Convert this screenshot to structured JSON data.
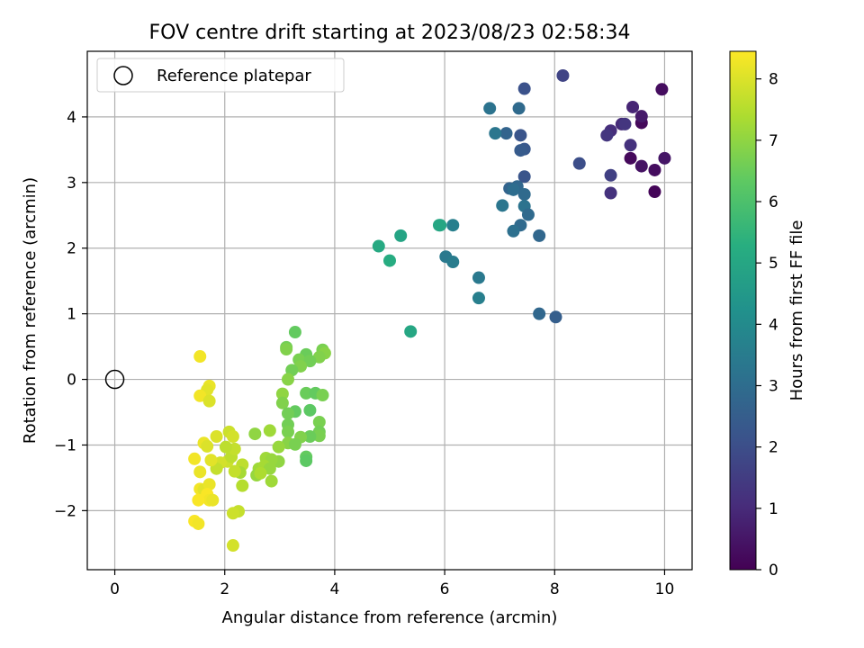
{
  "chart_data": {
    "type": "scatter",
    "title": "FOV centre drift starting at 2023/08/23 02:58:34",
    "xlabel": "Angular distance from reference (arcmin)",
    "ylabel": "Rotation from reference (arcmin)",
    "xlim": [
      -0.5,
      10.5
    ],
    "ylim": [
      -2.9,
      5.0
    ],
    "xticks": [
      0,
      2,
      4,
      6,
      8,
      10
    ],
    "yticks": [
      -2,
      -1,
      0,
      1,
      2,
      3,
      4
    ],
    "grid": true,
    "legend": {
      "placement": "top-left",
      "entries": [
        "Reference platepar"
      ]
    },
    "reference": {
      "x": 0,
      "y": 0,
      "label": "Reference platepar"
    },
    "colorbar": {
      "label": "Hours from first FF file",
      "colormap": "viridis",
      "range": [
        0,
        8.45
      ],
      "ticks": [
        0,
        1,
        2,
        3,
        4,
        5,
        6,
        7,
        8
      ]
    },
    "points": [
      {
        "x": 9.95,
        "y": 4.42,
        "t": 0.3
      },
      {
        "x": 10.0,
        "y": 3.37,
        "t": 0.5
      },
      {
        "x": 9.82,
        "y": 3.19,
        "t": 0.3
      },
      {
        "x": 9.82,
        "y": 2.86,
        "t": 0.1
      },
      {
        "x": 9.58,
        "y": 3.91,
        "t": 0.2
      },
      {
        "x": 9.58,
        "y": 4.01,
        "t": 0.6
      },
      {
        "x": 9.58,
        "y": 3.25,
        "t": 0.4
      },
      {
        "x": 9.42,
        "y": 4.15,
        "t": 0.9
      },
      {
        "x": 9.38,
        "y": 3.37,
        "t": 0.2
      },
      {
        "x": 9.38,
        "y": 3.57,
        "t": 1.2
      },
      {
        "x": 9.22,
        "y": 3.89,
        "t": 1.0
      },
      {
        "x": 9.28,
        "y": 3.89,
        "t": 1.3
      },
      {
        "x": 9.02,
        "y": 3.79,
        "t": 1.1
      },
      {
        "x": 8.95,
        "y": 3.72,
        "t": 1.3
      },
      {
        "x": 9.02,
        "y": 3.11,
        "t": 1.6
      },
      {
        "x": 9.02,
        "y": 2.84,
        "t": 1.2
      },
      {
        "x": 8.45,
        "y": 3.29,
        "t": 2.0
      },
      {
        "x": 8.15,
        "y": 4.63,
        "t": 1.7
      },
      {
        "x": 7.45,
        "y": 4.43,
        "t": 2.1
      },
      {
        "x": 7.38,
        "y": 3.72,
        "t": 2.2
      },
      {
        "x": 7.45,
        "y": 3.51,
        "t": 2.3
      },
      {
        "x": 7.38,
        "y": 3.49,
        "t": 2.4
      },
      {
        "x": 7.45,
        "y": 3.09,
        "t": 2.2
      },
      {
        "x": 7.35,
        "y": 4.13,
        "t": 2.9
      },
      {
        "x": 7.12,
        "y": 3.75,
        "t": 2.7
      },
      {
        "x": 6.82,
        "y": 4.13,
        "t": 3.2
      },
      {
        "x": 6.92,
        "y": 3.75,
        "t": 3.3
      },
      {
        "x": 7.18,
        "y": 2.91,
        "t": 2.7
      },
      {
        "x": 7.32,
        "y": 2.94,
        "t": 2.8
      },
      {
        "x": 7.25,
        "y": 2.89,
        "t": 3.0
      },
      {
        "x": 7.45,
        "y": 2.82,
        "t": 2.9
      },
      {
        "x": 7.45,
        "y": 2.64,
        "t": 3.2
      },
      {
        "x": 7.52,
        "y": 2.51,
        "t": 2.9
      },
      {
        "x": 7.05,
        "y": 2.65,
        "t": 3.3
      },
      {
        "x": 7.38,
        "y": 2.35,
        "t": 2.9
      },
      {
        "x": 7.25,
        "y": 2.26,
        "t": 3.1
      },
      {
        "x": 7.72,
        "y": 2.19,
        "t": 2.8
      },
      {
        "x": 6.62,
        "y": 1.55,
        "t": 3.4
      },
      {
        "x": 6.62,
        "y": 1.24,
        "t": 3.6
      },
      {
        "x": 7.72,
        "y": 1.0,
        "t": 2.8
      },
      {
        "x": 8.02,
        "y": 0.95,
        "t": 2.5
      },
      {
        "x": 6.15,
        "y": 2.35,
        "t": 3.6
      },
      {
        "x": 5.92,
        "y": 2.35,
        "t": 4.9
      },
      {
        "x": 5.9,
        "y": 2.35,
        "t": 5.0
      },
      {
        "x": 6.02,
        "y": 1.87,
        "t": 3.4
      },
      {
        "x": 6.15,
        "y": 1.79,
        "t": 3.5
      },
      {
        "x": 5.2,
        "y": 2.19,
        "t": 4.9
      },
      {
        "x": 4.8,
        "y": 2.03,
        "t": 5.1
      },
      {
        "x": 5.0,
        "y": 1.81,
        "t": 5.2
      },
      {
        "x": 5.38,
        "y": 0.73,
        "t": 5.0
      },
      {
        "x": 3.28,
        "y": 0.72,
        "t": 6.4
      },
      {
        "x": 3.12,
        "y": 0.49,
        "t": 6.6
      },
      {
        "x": 3.12,
        "y": 0.46,
        "t": 6.8
      },
      {
        "x": 3.78,
        "y": 0.45,
        "t": 6.7
      },
      {
        "x": 3.82,
        "y": 0.4,
        "t": 6.9
      },
      {
        "x": 3.48,
        "y": 0.38,
        "t": 6.5
      },
      {
        "x": 3.72,
        "y": 0.34,
        "t": 6.8
      },
      {
        "x": 3.35,
        "y": 0.3,
        "t": 6.7
      },
      {
        "x": 3.55,
        "y": 0.28,
        "t": 6.6
      },
      {
        "x": 3.38,
        "y": 0.2,
        "t": 6.8
      },
      {
        "x": 3.22,
        "y": 0.14,
        "t": 6.6
      },
      {
        "x": 3.15,
        "y": 0.0,
        "t": 6.9
      },
      {
        "x": 3.05,
        "y": -0.22,
        "t": 7.0
      },
      {
        "x": 3.48,
        "y": -0.21,
        "t": 6.5
      },
      {
        "x": 3.65,
        "y": -0.21,
        "t": 6.4
      },
      {
        "x": 3.78,
        "y": -0.24,
        "t": 6.7
      },
      {
        "x": 3.05,
        "y": -0.36,
        "t": 6.8
      },
      {
        "x": 3.28,
        "y": -0.49,
        "t": 6.4
      },
      {
        "x": 3.15,
        "y": -0.52,
        "t": 6.6
      },
      {
        "x": 3.55,
        "y": -0.47,
        "t": 6.3
      },
      {
        "x": 3.15,
        "y": -0.69,
        "t": 6.6
      },
      {
        "x": 3.72,
        "y": -0.65,
        "t": 6.7
      },
      {
        "x": 3.15,
        "y": -0.8,
        "t": 6.7
      },
      {
        "x": 3.72,
        "y": -0.8,
        "t": 6.6
      },
      {
        "x": 3.72,
        "y": -0.86,
        "t": 6.7
      },
      {
        "x": 3.55,
        "y": -0.87,
        "t": 6.5
      },
      {
        "x": 3.38,
        "y": -0.88,
        "t": 6.8
      },
      {
        "x": 3.15,
        "y": -0.97,
        "t": 6.9
      },
      {
        "x": 3.28,
        "y": -0.99,
        "t": 6.7
      },
      {
        "x": 2.98,
        "y": -1.03,
        "t": 7.1
      },
      {
        "x": 2.82,
        "y": -0.78,
        "t": 7.2
      },
      {
        "x": 2.55,
        "y": -0.83,
        "t": 7.0
      },
      {
        "x": 3.48,
        "y": -1.18,
        "t": 6.4
      },
      {
        "x": 3.48,
        "y": -1.24,
        "t": 6.3
      },
      {
        "x": 2.98,
        "y": -1.25,
        "t": 7.0
      },
      {
        "x": 2.75,
        "y": -1.2,
        "t": 7.2
      },
      {
        "x": 2.85,
        "y": -1.22,
        "t": 7.1
      },
      {
        "x": 2.62,
        "y": -1.36,
        "t": 7.2
      },
      {
        "x": 2.72,
        "y": -1.32,
        "t": 7.3
      },
      {
        "x": 2.82,
        "y": -1.36,
        "t": 7.1
      },
      {
        "x": 2.58,
        "y": -1.46,
        "t": 7.1
      },
      {
        "x": 2.65,
        "y": -1.43,
        "t": 7.4
      },
      {
        "x": 2.85,
        "y": -1.55,
        "t": 7.2
      },
      {
        "x": 2.32,
        "y": -1.62,
        "t": 7.5
      },
      {
        "x": 2.32,
        "y": -1.3,
        "t": 7.6
      },
      {
        "x": 2.28,
        "y": -1.42,
        "t": 7.3
      },
      {
        "x": 2.18,
        "y": -1.4,
        "t": 7.7
      },
      {
        "x": 2.05,
        "y": -1.25,
        "t": 7.8
      },
      {
        "x": 2.12,
        "y": -1.18,
        "t": 7.6
      },
      {
        "x": 2.18,
        "y": -1.06,
        "t": 7.7
      },
      {
        "x": 2.02,
        "y": -1.03,
        "t": 7.6
      },
      {
        "x": 2.08,
        "y": -0.8,
        "t": 7.8
      },
      {
        "x": 2.15,
        "y": -0.87,
        "t": 7.9
      },
      {
        "x": 1.85,
        "y": -0.87,
        "t": 8.0
      },
      {
        "x": 1.92,
        "y": -1.27,
        "t": 7.9
      },
      {
        "x": 1.85,
        "y": -1.36,
        "t": 7.7
      },
      {
        "x": 1.75,
        "y": -1.23,
        "t": 8.1
      },
      {
        "x": 1.62,
        "y": -0.97,
        "t": 8.2
      },
      {
        "x": 1.68,
        "y": -1.02,
        "t": 8.0
      },
      {
        "x": 1.55,
        "y": -1.41,
        "t": 8.2
      },
      {
        "x": 1.45,
        "y": -1.21,
        "t": 8.3
      },
      {
        "x": 1.55,
        "y": -1.67,
        "t": 8.3
      },
      {
        "x": 1.62,
        "y": -1.68,
        "t": 8.1
      },
      {
        "x": 1.72,
        "y": -1.6,
        "t": 8.2
      },
      {
        "x": 1.68,
        "y": -1.75,
        "t": 8.4
      },
      {
        "x": 1.72,
        "y": -1.84,
        "t": 8.3
      },
      {
        "x": 1.52,
        "y": -1.84,
        "t": 8.4
      },
      {
        "x": 1.78,
        "y": -1.84,
        "t": 8.2
      },
      {
        "x": 2.25,
        "y": -2.01,
        "t": 7.7
      },
      {
        "x": 2.15,
        "y": -2.04,
        "t": 7.8
      },
      {
        "x": 1.45,
        "y": -2.16,
        "t": 8.4
      },
      {
        "x": 1.52,
        "y": -2.2,
        "t": 8.3
      },
      {
        "x": 2.15,
        "y": -2.53,
        "t": 7.9
      },
      {
        "x": 1.55,
        "y": 0.35,
        "t": 8.3
      },
      {
        "x": 1.72,
        "y": -0.1,
        "t": 8.2
      },
      {
        "x": 1.68,
        "y": -0.16,
        "t": 8.1
      },
      {
        "x": 1.55,
        "y": -0.25,
        "t": 8.3
      },
      {
        "x": 1.72,
        "y": -0.33,
        "t": 8.0
      }
    ]
  }
}
